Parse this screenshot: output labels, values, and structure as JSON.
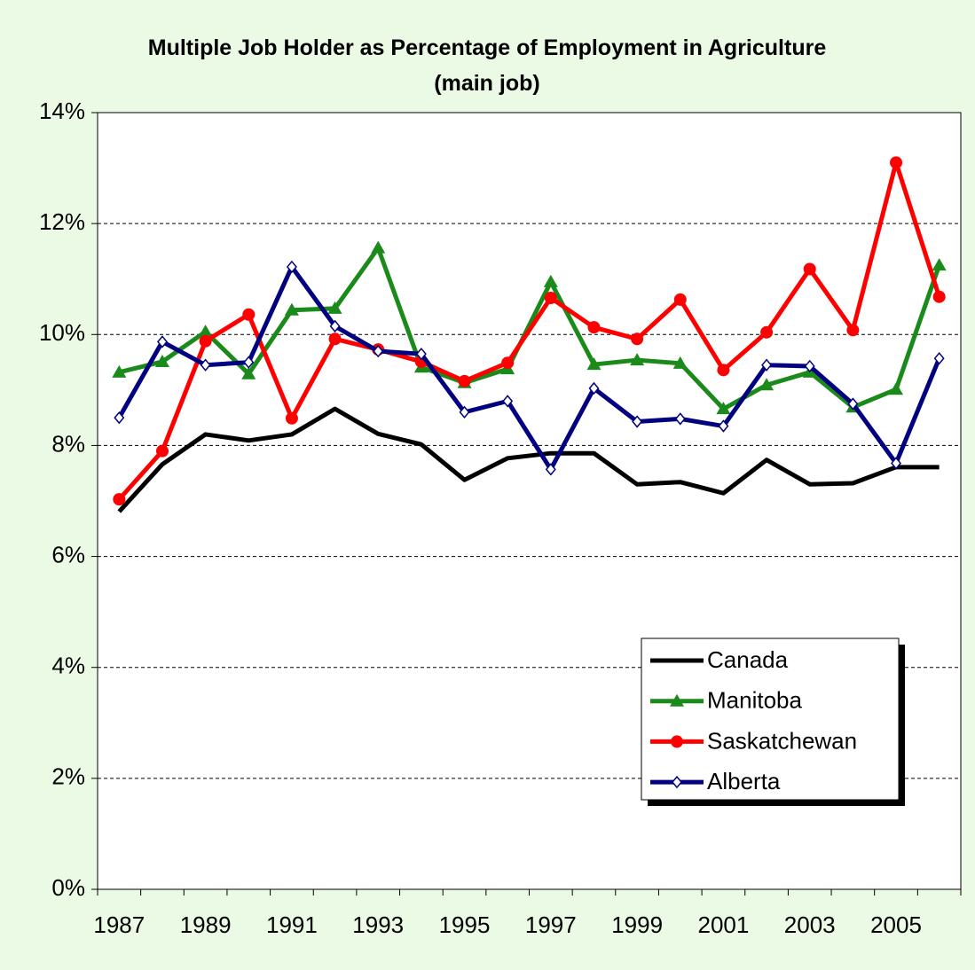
{
  "chart_data": {
    "type": "line",
    "title": "Multiple Job Holder as Percentage of Employment in Agriculture (main job)",
    "categories": [
      "1987",
      null,
      "1989",
      null,
      "1991",
      null,
      "1993",
      null,
      "1995",
      null,
      "1997",
      null,
      "1999",
      null,
      "2001",
      null,
      "2003",
      null,
      "2005",
      null
    ],
    "series": [
      {
        "name": "Canada",
        "color": "#000000",
        "marker": "none",
        "values": [
          6.81,
          7.66,
          8.2,
          8.09,
          8.2,
          8.66,
          8.21,
          8.02,
          7.38,
          7.77,
          7.86,
          7.86,
          7.3,
          7.34,
          7.14,
          7.74,
          7.3,
          7.32,
          7.61,
          7.61
        ]
      },
      {
        "name": "Manitoba",
        "color": "#1a8a1a",
        "marker": "triangle",
        "values": [
          9.32,
          9.51,
          10.05,
          9.29,
          10.44,
          10.47,
          11.56,
          9.41,
          9.13,
          9.38,
          10.95,
          9.46,
          9.54,
          9.48,
          8.66,
          9.09,
          9.32,
          8.69,
          9.01,
          11.25
        ]
      },
      {
        "name": "Saskatchewan",
        "color": "#ff0000",
        "marker": "circle",
        "values": [
          7.03,
          7.9,
          9.88,
          10.36,
          8.49,
          9.92,
          9.73,
          9.51,
          9.16,
          9.49,
          10.66,
          10.13,
          9.92,
          10.63,
          9.36,
          10.04,
          11.18,
          10.08,
          13.1,
          10.68
        ]
      },
      {
        "name": "Alberta",
        "color": "#000080",
        "marker": "diamond",
        "values": [
          8.5,
          9.87,
          9.45,
          9.5,
          11.22,
          10.15,
          9.7,
          9.65,
          8.6,
          8.8,
          7.57,
          9.03,
          8.43,
          8.48,
          8.35,
          9.45,
          9.43,
          8.75,
          7.68,
          9.57
        ]
      }
    ],
    "ylim": [
      0,
      14
    ],
    "yticks": [
      {
        "value": 0,
        "label": "0%"
      },
      {
        "value": 2,
        "label": "2%"
      },
      {
        "value": 4,
        "label": "4%"
      },
      {
        "value": 6,
        "label": "6%"
      },
      {
        "value": 8,
        "label": "8%"
      },
      {
        "value": 10,
        "label": "10%"
      },
      {
        "value": 12,
        "label": "12%"
      },
      {
        "value": 14,
        "label": "14%"
      }
    ],
    "grid": true
  }
}
